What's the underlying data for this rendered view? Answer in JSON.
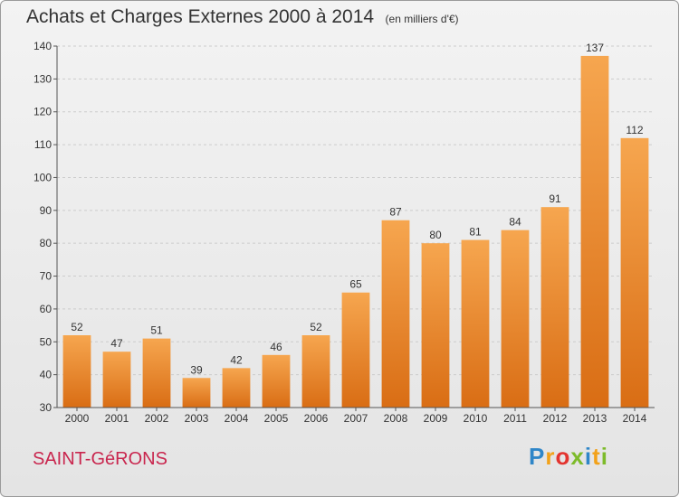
{
  "title": "Achats et Charges Externes 2000 à 2014",
  "unit_note": "(en milliers d'€)",
  "commune": "SAINT-GéRONS",
  "logo": {
    "text": "Proxiti",
    "letters": [
      {
        "ch": "P",
        "color": "#2f86c8"
      },
      {
        "ch": "r",
        "color": "#f2a21a"
      },
      {
        "ch": "o",
        "color": "#e3342f"
      },
      {
        "ch": "x",
        "color": "#7dbb2a"
      },
      {
        "ch": "i",
        "color": "#2f86c8"
      },
      {
        "ch": "t",
        "color": "#f2a21a"
      },
      {
        "ch": "i",
        "color": "#7dbb2a"
      }
    ]
  },
  "colors": {
    "bar_light": "#f6a64f",
    "bar_dark": "#d96d14",
    "commune": "#c9264e",
    "text": "#333333",
    "grid": "#cccccc"
  },
  "chart_data": {
    "type": "bar",
    "categories": [
      "2000",
      "2001",
      "2002",
      "2003",
      "2004",
      "2005",
      "2006",
      "2007",
      "2008",
      "2009",
      "2010",
      "2011",
      "2012",
      "2013",
      "2014"
    ],
    "values": [
      52,
      47,
      51,
      39,
      42,
      46,
      52,
      65,
      87,
      80,
      81,
      84,
      91,
      137,
      112
    ],
    "title": "Achats et Charges Externes 2000 à 2014",
    "subtitle": "(en milliers d'€)",
    "xlabel": "",
    "ylabel": "",
    "ylim": [
      30,
      140
    ],
    "yticks": [
      30,
      40,
      50,
      60,
      70,
      80,
      90,
      100,
      110,
      120,
      130,
      140
    ],
    "grid": true,
    "grid_style": "dashed horizontal"
  }
}
